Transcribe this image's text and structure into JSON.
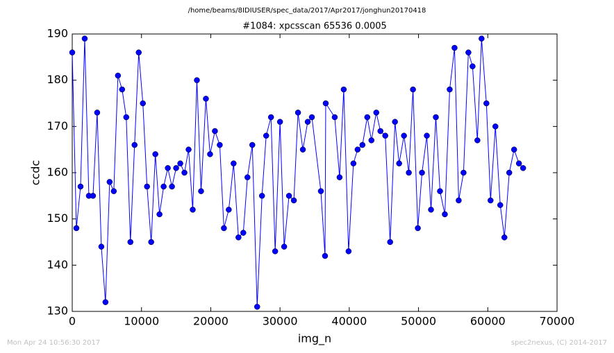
{
  "header": "/home/beams/8IDIUSER/spec_data/2017/Apr2017/jonghun20170418",
  "footer_left": "Mon Apr 24 10:56:30 2017",
  "footer_right": "spec2nexus, (C) 2014-2017",
  "chart_data": {
    "type": "line",
    "title": "#1084: xpcsscan 65536 0.0005",
    "x_label": "img_n",
    "y_label": "ccdc",
    "xlim": [
      0,
      70000
    ],
    "xticks": [
      0,
      10000,
      20000,
      30000,
      40000,
      50000,
      60000,
      70000
    ],
    "ylim": [
      130,
      190
    ],
    "yticks": [
      130,
      140,
      150,
      160,
      170,
      180,
      190
    ],
    "grid": false,
    "series": [
      {
        "name": "ccdc",
        "color": "#0000ff",
        "x": [
          0,
          600,
          1200,
          1800,
          2400,
          3000,
          3600,
          4200,
          4800,
          5400,
          6000,
          6600,
          7200,
          7800,
          8400,
          9000,
          9600,
          10200,
          10800,
          11400,
          12000,
          12600,
          13200,
          13800,
          14400,
          15000,
          15600,
          16200,
          16800,
          17400,
          18000,
          18600,
          19300,
          19900,
          20600,
          21300,
          21900,
          22600,
          23300,
          24000,
          24700,
          25300,
          26000,
          26700,
          27400,
          28000,
          28700,
          29300,
          30000,
          30600,
          31300,
          32000,
          32600,
          33300,
          34000,
          34600,
          35900,
          36500,
          36600,
          37900,
          38600,
          39200,
          39900,
          40600,
          41200,
          41900,
          42600,
          43200,
          43900,
          44500,
          45200,
          45900,
          46600,
          47200,
          47900,
          48600,
          49200,
          49900,
          50500,
          51200,
          51800,
          52500,
          53100,
          53800,
          54500,
          55200,
          55800,
          56500,
          57200,
          57800,
          58500,
          59100,
          59800,
          60400,
          61100,
          61800,
          62400,
          63100,
          63800,
          64500,
          65100
        ],
        "values": [
          186,
          148,
          157,
          189,
          155,
          155,
          173,
          144,
          132,
          158,
          156,
          181,
          178,
          172,
          145,
          166,
          186,
          175,
          157,
          145,
          164,
          151,
          157,
          161,
          157,
          161,
          162,
          160,
          165,
          152,
          180,
          156,
          176,
          164,
          169,
          166,
          148,
          152,
          162,
          146,
          147,
          159,
          166,
          131,
          155,
          168,
          172,
          143,
          171,
          144,
          155,
          154,
          173,
          165,
          171,
          172,
          156,
          142,
          175,
          172,
          159,
          178,
          143,
          162,
          165,
          166,
          172,
          167,
          173,
          169,
          168,
          145,
          171,
          162,
          168,
          160,
          178,
          148,
          160,
          168,
          152,
          172,
          156,
          151,
          178,
          187,
          154,
          160,
          186,
          183,
          167,
          189,
          175,
          154,
          170,
          153,
          146,
          160,
          165,
          162,
          161
        ]
      }
    ]
  }
}
